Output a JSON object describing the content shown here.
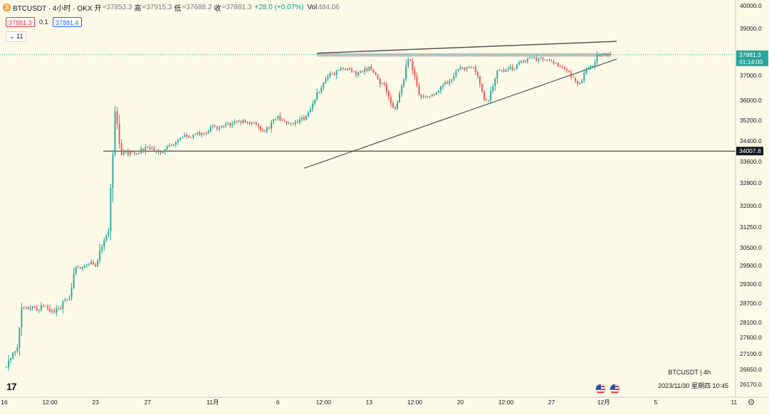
{
  "header": {
    "symbol": "BTCUSDT · 4小时 · OKX",
    "symbol_icon": "bitcoin-icon",
    "open_label": "开",
    "open_value": "=37853.3",
    "high_label": "高",
    "high_value": "=37915.3",
    "low_label": "低",
    "low_value": "=37688.2",
    "close_label": "收",
    "close_value": "=37881.3",
    "change_value": "+28.0 (+0.07%)",
    "vol_label": "Vol",
    "vol_value": "484.06"
  },
  "trade_panel": {
    "sell_price": "37881.3",
    "spread": "0.1",
    "buy_price": "37881.4"
  },
  "indicator_toggle": "⌄ 11",
  "watermark": {
    "symbol": "BTCUSDT | 4h",
    "datetime": "2023/11/30 星期四 10:45"
  },
  "price_axis": {
    "current_price": "37881.3",
    "countdown": "01:14:00",
    "hline_label": "34007.8"
  },
  "colors": {
    "up": "#26a69a",
    "down": "#ef5350",
    "background": "#fdfbe8",
    "trendline": "#555555",
    "zone": "#b4b4b4",
    "current_price": "#26a69a"
  },
  "chart_data": {
    "type": "candlestick",
    "symbol": "BTCUSDT",
    "timeframe": "4h",
    "y_ticks": [
      40000,
      39000,
      37000,
      36000,
      35200,
      34400,
      33600,
      32800,
      32000,
      31250,
      30500,
      29900,
      29300,
      28700,
      28100,
      27600,
      27100,
      26650,
      26170
    ],
    "y_tick_labels": [
      "40000.0",
      "39000.0",
      "37000.0",
      "36000.0",
      "35200.0",
      "34400.0",
      "33600.0",
      "32800.0",
      "32000.0",
      "31250.0",
      "30500.0",
      "29900.0",
      "29300.0",
      "28700.0",
      "28100.0",
      "27600.0",
      "27100.0",
      "26650.0",
      "26170.0"
    ],
    "x_ticks": [
      {
        "label": "16",
        "day": 0
      },
      {
        "label": "12:00",
        "day": 3.5
      },
      {
        "label": "23",
        "day": 7
      },
      {
        "label": "27",
        "day": 11
      },
      {
        "label": "11月",
        "day": 16
      },
      {
        "label": "6",
        "day": 21
      },
      {
        "label": "12:00",
        "day": 24.5
      },
      {
        "label": "13",
        "day": 28
      },
      {
        "label": "12:00",
        "day": 31.5
      },
      {
        "label": "20",
        "day": 35
      },
      {
        "label": "12:00",
        "day": 38.5
      },
      {
        "label": "27",
        "day": 42
      },
      {
        "label": "12月",
        "day": 46
      },
      {
        "label": "5",
        "day": 50
      },
      {
        "label": "11",
        "day": 56
      }
    ],
    "x_start": "2023-10-16",
    "x_end": "2023-11-30",
    "last_candle": {
      "open": 37853.3,
      "high": 37915.3,
      "low": 37688.2,
      "close": 37881.3,
      "volume": 484.06
    },
    "current_price": 37881.3,
    "horizontal_line": 34007.8,
    "resistance_zone": {
      "from_day": 24,
      "to_day": 46.5,
      "low": 37800,
      "high": 37950
    },
    "upper_trendline": {
      "day1": 24,
      "price1": 37950,
      "day2": 47,
      "price2": 38450
    },
    "lower_trendline": {
      "day1": 23,
      "price1": 33350,
      "day2": 47,
      "price2": 37700
    },
    "segments": [
      [
        0,
        26750
      ],
      [
        1,
        27300
      ],
      [
        1.3,
        28500
      ],
      [
        2.5,
        28550
      ],
      [
        3,
        28550
      ],
      [
        4,
        28450
      ],
      [
        5,
        28950
      ],
      [
        5.5,
        29800
      ],
      [
        7,
        29950
      ],
      [
        7.5,
        30600
      ],
      [
        8,
        31050
      ],
      [
        8.3,
        33800
      ],
      [
        8.5,
        35600
      ],
      [
        9,
        33900
      ],
      [
        10,
        33950
      ],
      [
        11,
        34100
      ],
      [
        12,
        34000
      ],
      [
        13,
        34300
      ],
      [
        14,
        34600
      ],
      [
        15,
        34650
      ],
      [
        16,
        34900
      ],
      [
        17,
        35000
      ],
      [
        18,
        35200
      ],
      [
        19,
        35100
      ],
      [
        20,
        34800
      ],
      [
        21,
        35300
      ],
      [
        22,
        35000
      ],
      [
        23,
        35300
      ],
      [
        23.5,
        35600
      ],
      [
        24,
        36300
      ],
      [
        25,
        37050
      ],
      [
        26,
        37250
      ],
      [
        27,
        37100
      ],
      [
        28,
        37300
      ],
      [
        29,
        36700
      ],
      [
        30,
        35700
      ],
      [
        30.5,
        36500
      ],
      [
        31,
        37700
      ],
      [
        32,
        36100
      ],
      [
        33,
        36300
      ],
      [
        34,
        36700
      ],
      [
        35,
        37300
      ],
      [
        36,
        37300
      ],
      [
        37,
        36000
      ],
      [
        38,
        37200
      ],
      [
        39,
        37300
      ],
      [
        40,
        37650
      ],
      [
        41,
        37700
      ],
      [
        42,
        37550
      ],
      [
        43,
        37300
      ],
      [
        44,
        36700
      ],
      [
        45,
        37400
      ],
      [
        45.7,
        37900
      ],
      [
        46.5,
        37881
      ]
    ]
  }
}
